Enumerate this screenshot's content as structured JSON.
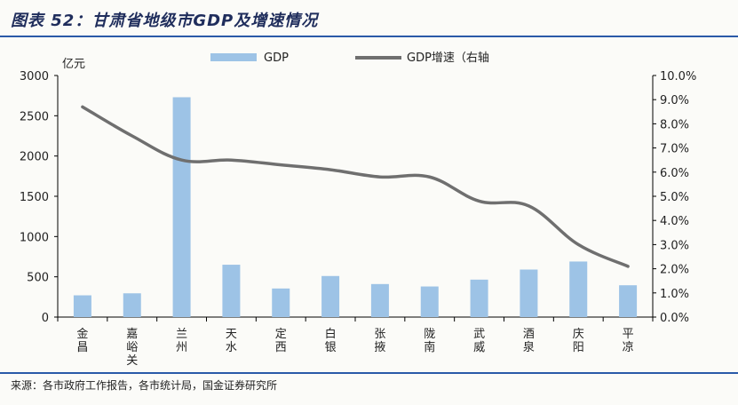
{
  "title": "图表 52：甘肃省地级市GDP及增速情况",
  "source": "来源：各市政府工作报告，各市统计局，国金证券研究所",
  "colors": {
    "bar": "#9dc3e6",
    "line": "#6f6f6f",
    "rule": "#2a5aa8",
    "title": "#1f2d5c"
  },
  "chart_data": {
    "type": "bar+line",
    "title": "图表 52：甘肃省地级市GDP及增速情况",
    "ylabel": "亿元",
    "categories": [
      "金昌",
      "嘉峪关",
      "兰州",
      "天水",
      "定西",
      "白银",
      "张掖",
      "陇南",
      "武威",
      "酒泉",
      "庆阳",
      "平凉"
    ],
    "series": [
      {
        "name": "GDP",
        "type": "bar",
        "axis": "left",
        "values": [
          270,
          295,
          2730,
          650,
          355,
          510,
          410,
          380,
          465,
          590,
          690,
          395
        ]
      },
      {
        "name": "GDP增速（右轴",
        "type": "line",
        "axis": "right",
        "values": [
          8.7,
          7.5,
          6.5,
          6.5,
          6.3,
          6.1,
          5.8,
          5.8,
          4.8,
          4.6,
          3.0,
          2.1
        ]
      }
    ],
    "ylim": [
      0,
      3000
    ],
    "yticks": [
      0,
      500,
      1000,
      1500,
      2000,
      2500,
      3000
    ],
    "y2lim": [
      0,
      10
    ],
    "y2ticks": [
      "0.0%",
      "1.0%",
      "2.0%",
      "3.0%",
      "4.0%",
      "5.0%",
      "6.0%",
      "7.0%",
      "8.0%",
      "9.0%",
      "10.0%"
    ],
    "legend": [
      "GDP",
      "GDP增速（右轴"
    ],
    "legend_position": "top-center"
  }
}
